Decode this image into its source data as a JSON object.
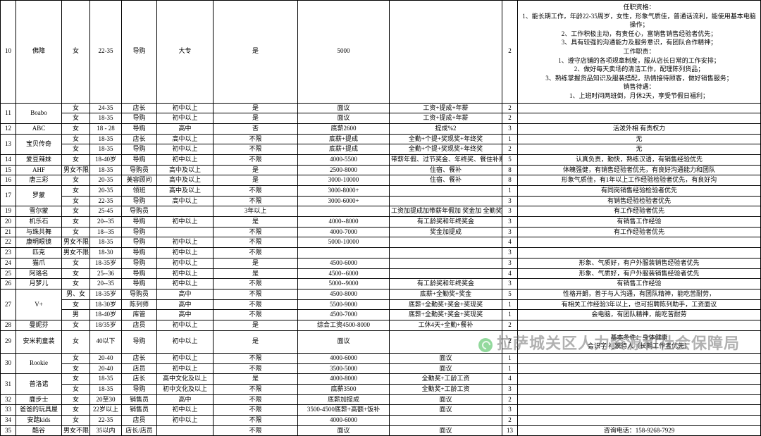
{
  "styling": {
    "type": "table",
    "font_family": "SimSun",
    "font_size_pt": 9,
    "border_color": "#000000",
    "border_width": 1,
    "background_color": "#ffffff",
    "text_color": "#000000",
    "text_align": "center",
    "col_count": 11,
    "watermark": {
      "text": "拉萨城关区人力资源和社会保障局",
      "color": "rgba(100,100,100,0.5)",
      "font_size": 22,
      "icon_color": "rgba(40,180,60,0.5)"
    }
  },
  "row10": {
    "id": "10",
    "name": "佛障",
    "sex": "女",
    "age": "22-35",
    "pos": "导购",
    "edu": "大专",
    "req": "是",
    "sal": "5000",
    "ben": "",
    "ct": "2",
    "note": "任职资格：\n1、能长期工作，年龄22-35周岁，女性，形象气质佳，普通话流利，能使用基本电脑操作；\n2、工作积极主动，有责任心，富销售销售经验者优先；\n3、具有较强的沟通能力及服务意识，有团队合作精神；\n工作职责：\n1、遵守店铺的各项规章制度，服从店长日常的工作安排；\n2、做好每天卖场的清洁工作，配理陈列货品；\n3、熟练掌握货品知识及服装搭配，热情接待顾客，做好销售服务；\n销售待遇：\n1、上班时间两班倒，月休2天，享受节假日福利；"
  },
  "row11": {
    "id": "11",
    "name": "Boabo",
    "sub": [
      {
        "sex": "女",
        "age": "24-35",
        "pos": "店长",
        "edu": "初中以上",
        "req": "是",
        "sal": "面议",
        "ben": "工资+提成+年薪",
        "ct": "2",
        "note": ""
      },
      {
        "sex": "女",
        "age": "18-35",
        "pos": "导购",
        "edu": "初中以上",
        "req": "是",
        "sal": "面议",
        "ben": "工资+提成+年薪",
        "ct": "2",
        "note": ""
      }
    ]
  },
  "row12": {
    "id": "12",
    "name": "ABC",
    "sex": "女",
    "age": "18 - 28",
    "pos": "导购",
    "edu": "高中",
    "req": "否",
    "sal": "底薪2600",
    "ben": "提成%2",
    "ct": "3",
    "note": "活泼外相 有责权力"
  },
  "row13": {
    "id": "13",
    "name": "宝贝传奇",
    "sub": [
      {
        "sex": "女",
        "age": "18-35",
        "pos": "店长",
        "edu": "高中以上",
        "req": "不限",
        "sal": "底薪+提成",
        "ben": "全勤+个提+奖现奖+年终奖",
        "ct": "1",
        "note": "无"
      },
      {
        "sex": "女",
        "age": "18-35",
        "pos": "导购",
        "edu": "初中以上",
        "req": "不限",
        "sal": "底薪+提成",
        "ben": "全勤+个提+奖现奖+年终奖",
        "ct": "2",
        "note": "无"
      }
    ]
  },
  "row14": {
    "id": "14",
    "name": "爱豆辣妹",
    "sex": "女",
    "age": "18-40岁",
    "pos": "导购",
    "edu": "初中以上",
    "req": "不限",
    "sal": "4000-5500",
    "ben": "带薪年假、过节奖金、年终奖、餐住补贴",
    "ct": "5",
    "note": "认真负责，勤快，熟练汉语，有销售经验优先"
  },
  "row15": {
    "id": "15",
    "name": "AHF",
    "sex": "男女不限",
    "age": "18-35",
    "pos": "导购员",
    "edu": "高中及以上",
    "req": "是",
    "sal": "2500-8000",
    "ben": "住宿、餐补",
    "ct": "8",
    "note": "体魄强健，有销售经验者优先，有良好沟通能力和团队"
  },
  "row16": {
    "id": "16",
    "name": "唐三彩",
    "sex": "女",
    "age": "20-35",
    "pos": "美容顾问",
    "edu": "高中及以上",
    "req": "是",
    "sal": "3000-10000",
    "ben": "住宿、餐补",
    "ct": "8",
    "note": "形象气质佳，有1年以上工作经验检验者优先，有良好沟"
  },
  "rows": [
    {
      "id": "17",
      "name": "罗蒙",
      "span": 2,
      "sub": [
        {
          "sex": "女",
          "age": "20-35",
          "pos": "领班",
          "edu": "高中及以上",
          "req": "不限",
          "sal": "3000-8000+",
          "ben": "",
          "ct": "1",
          "note": "有同岗销售经验检验者优先"
        },
        {
          "sex": "女",
          "age": "22-35",
          "pos": "导购",
          "edu": "高中以上",
          "req": "不限",
          "sal": "3000-6000+",
          "ben": "",
          "ct": "3",
          "note": "有销售经验检验者优先"
        }
      ]
    },
    {
      "id": "19",
      "name": "雪尔蒙",
      "sex": "女",
      "age": "25-45",
      "pos": "导购员",
      "edu": "",
      "req": "3年以上",
      "sal": "",
      "ben": "工资加提成加带薪年假加 奖金加 全勤奖",
      "ct": "3",
      "note": "有工作经验者优先"
    },
    {
      "id": "20",
      "name": "机乐石",
      "sex": "女",
      "age": "20--35",
      "pos": "导购",
      "edu": "初中以上",
      "req": "是",
      "sal": "4000--8000",
      "ben": "有工龄奖和年终奖金",
      "ct": "3",
      "note": "有销售工作经验"
    },
    {
      "id": "21",
      "name": "与珠共舞",
      "sex": "女",
      "age": "18--35",
      "pos": "导购",
      "edu": "",
      "req": "不限",
      "sal": "4000-7000",
      "ben": "奖金加提成",
      "ct": "3",
      "note": "有工作经验者优先"
    },
    {
      "id": "22",
      "name": "康明眼镜",
      "sex": "男女不限",
      "age": "18-35",
      "pos": "导购",
      "edu": "初中以上",
      "req": "不限",
      "sal": "5000-10000",
      "ben": "",
      "ct": "4",
      "note": ""
    },
    {
      "id": "23",
      "name": "匹克",
      "sex": "男女不限",
      "age": "18-30",
      "pos": "导购",
      "edu": "初中以上",
      "req": "不限",
      "sal": "",
      "ben": "",
      "ct": "3",
      "note": ""
    },
    {
      "id": "24",
      "name": "猫爪",
      "sex": "女",
      "age": "18-35岁",
      "pos": "导购",
      "edu": "初中以上",
      "req": "是",
      "sal": "4500-6000",
      "ben": "",
      "ct": "3",
      "note": "形象、气质好，有户外服装销售经验者优先"
    },
    {
      "id": "25",
      "name": "阿珞名",
      "sex": "女",
      "age": "25--36",
      "pos": "导购",
      "edu": "初中以上",
      "req": "是",
      "sal": "4500--6000",
      "ben": "",
      "ct": "4",
      "note": "形象、气质好，有户外服装销售经验者优先"
    },
    {
      "id": "26",
      "name": "月梦儿",
      "sex": "女",
      "age": "20--35",
      "pos": "导购",
      "edu": "初中以上",
      "req": "不限",
      "sal": "5000--9000",
      "ben": "有工龄奖和年终奖金",
      "ct": "3",
      "note": "有销售工作经验"
    },
    {
      "id": "27",
      "name": "V+",
      "span": 3,
      "sub": [
        {
          "sex": "男、女",
          "age": "18-35岁",
          "pos": "导购员",
          "edu": "高中",
          "req": "不限",
          "sal": "4500-8000",
          "ben": "底薪+全勤奖+奖金",
          "ct": "5",
          "note": "性格开朗，善于与人沟通，有团队精神，能吃苦耐劳，"
        },
        {
          "sex": "女",
          "age": "18-30岁",
          "pos": "陈列师",
          "edu": "高中",
          "req": "不限",
          "sal": "5500-9000",
          "ben": "底薪+全勤奖+奖金+奖现奖",
          "ct": "1",
          "note": "有相关工作经验3年以上，也可招聘陈列助手，工资面议"
        },
        {
          "sex": "男",
          "age": "18-40岁",
          "pos": "库管",
          "edu": "高中",
          "req": "不限",
          "sal": "4500-7000",
          "ben": "底薪+全勤奖+奖金+奖现奖",
          "ct": "1",
          "note": "会电脑，有团队精神，能吃苦耐劳"
        }
      ]
    },
    {
      "id": "28",
      "name": "曼妮芬",
      "sex": "女",
      "age": "18/35岁",
      "pos": "店员",
      "edu": "初中以上",
      "req": "是",
      "sal": "综合工资4500-8000",
      "ben": "工休4天+全勤+餐补",
      "ct": "2",
      "note": ""
    },
    {
      "id": "29",
      "name": "安米莉童装",
      "sex": "女",
      "age": "40以下",
      "pos": "导购",
      "edu": "初中以上",
      "req": "是",
      "sal": "面议",
      "ben": "",
      "ct": "2",
      "note": "基本条件：身体健康\n会识字 礼貌待人（长期工作者优先）"
    },
    {
      "id": "30",
      "name": "Rookie",
      "span": 2,
      "sub": [
        {
          "sex": "女",
          "age": "20-40",
          "pos": "店长",
          "edu": "初中以上",
          "req": "不限",
          "sal": "4000-6000",
          "ben": "面议",
          "ct": "1",
          "note": ""
        },
        {
          "sex": "女",
          "age": "20-40",
          "pos": "店员",
          "edu": "初中以上",
          "req": "不限",
          "sal": "3500-5000",
          "ben": "面议",
          "ct": "1",
          "note": ""
        }
      ]
    },
    {
      "id": "31",
      "name": "普洛诺",
      "span": 2,
      "sub": [
        {
          "sex": "女",
          "age": "18-35",
          "pos": "店长",
          "edu": "高中文化及以上",
          "req": "是",
          "sal": "4000-8000",
          "ben": "全勤奖+工龄工资",
          "ct": "4",
          "note": ""
        },
        {
          "sex": "女",
          "age": "18-35",
          "pos": "导购",
          "edu": "初中文化及以上",
          "req": "不限",
          "sal": "底薪3500",
          "ben": "全勤奖+工龄工资",
          "ct": "3",
          "note": ""
        }
      ]
    },
    {
      "id": "32",
      "name": "鹿步士",
      "sex": "女",
      "age": "20至30",
      "pos": "销售员",
      "edu": "高中",
      "req": "不限",
      "sal": "底薪加提成",
      "ben": "面议",
      "ct": "2",
      "note": ""
    },
    {
      "id": "33",
      "name": "爸爸的玩具屋",
      "sex": "女",
      "age": "22岁以上",
      "pos": "销售员",
      "edu": "初中以上",
      "req": "不限",
      "sal": "3500-4500底薪+高额+饭补",
      "ben": "面议",
      "ct": "3",
      "note": ""
    },
    {
      "id": "34",
      "name": "安踏kids",
      "sex": "女",
      "age": "22-35",
      "pos": "店员",
      "edu": "初中以上",
      "req": "不限",
      "sal": "4000-6000",
      "ben": "",
      "ct": "2",
      "note": ""
    },
    {
      "id": "35",
      "name": "酷谷",
      "sex": "男女不限",
      "age": "35以内",
      "pos": "店长/店员",
      "edu": "",
      "req": "不限",
      "sal": "面议",
      "ben": "面议",
      "ct": "13",
      "note": "咨询电话：158-9268-7929"
    }
  ]
}
